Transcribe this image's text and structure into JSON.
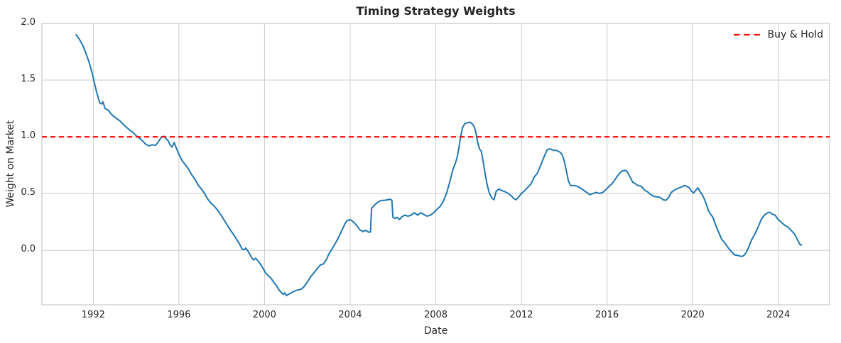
{
  "chart_data": {
    "type": "line",
    "title": "Timing Strategy Weights",
    "xlabel": "Date",
    "ylabel": "Weight on Market",
    "xlim": [
      1989.6,
      2026.4
    ],
    "ylim": [
      -0.48,
      2.0
    ],
    "xticks": [
      1992,
      1996,
      2000,
      2004,
      2008,
      2012,
      2016,
      2020,
      2024
    ],
    "yticks": [
      0.0,
      0.5,
      1.0,
      1.5,
      2.0
    ],
    "grid": true,
    "legend_position": "upper right",
    "colors": {
      "grid": "#cccccc",
      "spine": "#cccccc",
      "text": "#262626",
      "background": "#ffffff"
    },
    "series": [
      {
        "name": "Timing Strategy",
        "type": "line",
        "color": "#1f77b4",
        "in_legend": false,
        "points": [
          [
            1991.2,
            1.9
          ],
          [
            1991.35,
            1.86
          ],
          [
            1991.5,
            1.81
          ],
          [
            1991.65,
            1.74
          ],
          [
            1991.8,
            1.66
          ],
          [
            1991.95,
            1.56
          ],
          [
            1992.05,
            1.48
          ],
          [
            1992.15,
            1.4
          ],
          [
            1992.3,
            1.3
          ],
          [
            1992.4,
            1.29
          ],
          [
            1992.45,
            1.31
          ],
          [
            1992.55,
            1.25
          ],
          [
            1992.7,
            1.235
          ],
          [
            1992.8,
            1.21
          ],
          [
            1992.95,
            1.18
          ],
          [
            1993.1,
            1.16
          ],
          [
            1993.25,
            1.14
          ],
          [
            1993.4,
            1.11
          ],
          [
            1993.55,
            1.085
          ],
          [
            1993.7,
            1.06
          ],
          [
            1993.85,
            1.04
          ],
          [
            1994.0,
            1.01
          ],
          [
            1994.15,
            0.99
          ],
          [
            1994.3,
            0.965
          ],
          [
            1994.45,
            0.935
          ],
          [
            1994.6,
            0.92
          ],
          [
            1994.75,
            0.93
          ],
          [
            1994.9,
            0.925
          ],
          [
            1995.0,
            0.945
          ],
          [
            1995.1,
            0.975
          ],
          [
            1995.2,
            1.0
          ],
          [
            1995.3,
            1.005
          ],
          [
            1995.4,
            0.985
          ],
          [
            1995.5,
            0.965
          ],
          [
            1995.6,
            0.925
          ],
          [
            1995.68,
            0.91
          ],
          [
            1995.78,
            0.95
          ],
          [
            1995.88,
            0.9
          ],
          [
            1996.0,
            0.845
          ],
          [
            1996.15,
            0.79
          ],
          [
            1996.3,
            0.755
          ],
          [
            1996.45,
            0.715
          ],
          [
            1996.6,
            0.665
          ],
          [
            1996.75,
            0.625
          ],
          [
            1996.9,
            0.575
          ],
          [
            1997.05,
            0.54
          ],
          [
            1997.2,
            0.5
          ],
          [
            1997.35,
            0.45
          ],
          [
            1997.5,
            0.415
          ],
          [
            1997.65,
            0.39
          ],
          [
            1997.8,
            0.355
          ],
          [
            1997.95,
            0.315
          ],
          [
            1998.1,
            0.27
          ],
          [
            1998.25,
            0.225
          ],
          [
            1998.4,
            0.18
          ],
          [
            1998.55,
            0.14
          ],
          [
            1998.7,
            0.095
          ],
          [
            1998.85,
            0.05
          ],
          [
            1998.95,
            0.01
          ],
          [
            1999.05,
            0.005
          ],
          [
            1999.12,
            0.02
          ],
          [
            1999.2,
            0.0
          ],
          [
            1999.3,
            -0.03
          ],
          [
            1999.42,
            -0.07
          ],
          [
            1999.5,
            -0.085
          ],
          [
            1999.58,
            -0.07
          ],
          [
            1999.68,
            -0.09
          ],
          [
            1999.8,
            -0.12
          ],
          [
            1999.92,
            -0.155
          ],
          [
            2000.05,
            -0.2
          ],
          [
            2000.18,
            -0.225
          ],
          [
            2000.3,
            -0.245
          ],
          [
            2000.42,
            -0.28
          ],
          [
            2000.55,
            -0.31
          ],
          [
            2000.68,
            -0.35
          ],
          [
            2000.8,
            -0.375
          ],
          [
            2000.88,
            -0.39
          ],
          [
            2000.95,
            -0.375
          ],
          [
            2001.02,
            -0.4
          ],
          [
            2001.1,
            -0.39
          ],
          [
            2001.25,
            -0.375
          ],
          [
            2001.4,
            -0.36
          ],
          [
            2001.55,
            -0.35
          ],
          [
            2001.7,
            -0.345
          ],
          [
            2001.85,
            -0.32
          ],
          [
            2002.0,
            -0.28
          ],
          [
            2002.15,
            -0.235
          ],
          [
            2002.3,
            -0.2
          ],
          [
            2002.45,
            -0.165
          ],
          [
            2002.6,
            -0.13
          ],
          [
            2002.75,
            -0.12
          ],
          [
            2002.9,
            -0.08
          ],
          [
            2003.0,
            -0.035
          ],
          [
            2003.15,
            0.01
          ],
          [
            2003.3,
            0.06
          ],
          [
            2003.45,
            0.11
          ],
          [
            2003.6,
            0.17
          ],
          [
            2003.75,
            0.23
          ],
          [
            2003.85,
            0.26
          ],
          [
            2004.0,
            0.27
          ],
          [
            2004.15,
            0.25
          ],
          [
            2004.3,
            0.22
          ],
          [
            2004.45,
            0.18
          ],
          [
            2004.6,
            0.165
          ],
          [
            2004.72,
            0.175
          ],
          [
            2004.85,
            0.16
          ],
          [
            2004.95,
            0.16
          ],
          [
            2005.0,
            0.37
          ],
          [
            2005.15,
            0.4
          ],
          [
            2005.3,
            0.425
          ],
          [
            2005.45,
            0.44
          ],
          [
            2005.6,
            0.44
          ],
          [
            2005.75,
            0.445
          ],
          [
            2005.88,
            0.45
          ],
          [
            2005.95,
            0.44
          ],
          [
            2006.0,
            0.29
          ],
          [
            2006.1,
            0.28
          ],
          [
            2006.2,
            0.29
          ],
          [
            2006.3,
            0.27
          ],
          [
            2006.42,
            0.295
          ],
          [
            2006.55,
            0.31
          ],
          [
            2006.7,
            0.3
          ],
          [
            2006.85,
            0.31
          ],
          [
            2007.0,
            0.33
          ],
          [
            2007.15,
            0.31
          ],
          [
            2007.3,
            0.33
          ],
          [
            2007.45,
            0.315
          ],
          [
            2007.6,
            0.3
          ],
          [
            2007.75,
            0.31
          ],
          [
            2007.9,
            0.33
          ],
          [
            2008.05,
            0.36
          ],
          [
            2008.2,
            0.385
          ],
          [
            2008.35,
            0.43
          ],
          [
            2008.5,
            0.5
          ],
          [
            2008.65,
            0.6
          ],
          [
            2008.8,
            0.71
          ],
          [
            2008.92,
            0.77
          ],
          [
            2009.0,
            0.82
          ],
          [
            2009.08,
            0.9
          ],
          [
            2009.16,
            1.0
          ],
          [
            2009.25,
            1.08
          ],
          [
            2009.35,
            1.115
          ],
          [
            2009.5,
            1.125
          ],
          [
            2009.6,
            1.13
          ],
          [
            2009.7,
            1.115
          ],
          [
            2009.8,
            1.09
          ],
          [
            2009.88,
            1.03
          ],
          [
            2009.95,
            0.955
          ],
          [
            2010.05,
            0.89
          ],
          [
            2010.12,
            0.875
          ],
          [
            2010.2,
            0.8
          ],
          [
            2010.3,
            0.68
          ],
          [
            2010.4,
            0.58
          ],
          [
            2010.5,
            0.505
          ],
          [
            2010.62,
            0.46
          ],
          [
            2010.72,
            0.445
          ],
          [
            2010.82,
            0.52
          ],
          [
            2010.95,
            0.54
          ],
          [
            2011.1,
            0.525
          ],
          [
            2011.25,
            0.515
          ],
          [
            2011.4,
            0.5
          ],
          [
            2011.55,
            0.475
          ],
          [
            2011.65,
            0.455
          ],
          [
            2011.75,
            0.445
          ],
          [
            2011.85,
            0.465
          ],
          [
            2012.0,
            0.5
          ],
          [
            2012.15,
            0.525
          ],
          [
            2012.3,
            0.555
          ],
          [
            2012.45,
            0.585
          ],
          [
            2012.6,
            0.645
          ],
          [
            2012.75,
            0.68
          ],
          [
            2012.9,
            0.75
          ],
          [
            2013.05,
            0.82
          ],
          [
            2013.2,
            0.885
          ],
          [
            2013.35,
            0.895
          ],
          [
            2013.5,
            0.88
          ],
          [
            2013.65,
            0.88
          ],
          [
            2013.8,
            0.865
          ],
          [
            2013.9,
            0.845
          ],
          [
            2014.0,
            0.79
          ],
          [
            2014.1,
            0.7
          ],
          [
            2014.2,
            0.61
          ],
          [
            2014.3,
            0.57
          ],
          [
            2014.45,
            0.57
          ],
          [
            2014.6,
            0.565
          ],
          [
            2014.75,
            0.55
          ],
          [
            2014.9,
            0.53
          ],
          [
            2015.05,
            0.51
          ],
          [
            2015.2,
            0.49
          ],
          [
            2015.35,
            0.5
          ],
          [
            2015.5,
            0.51
          ],
          [
            2015.65,
            0.5
          ],
          [
            2015.8,
            0.51
          ],
          [
            2015.95,
            0.535
          ],
          [
            2016.1,
            0.565
          ],
          [
            2016.25,
            0.59
          ],
          [
            2016.4,
            0.63
          ],
          [
            2016.55,
            0.67
          ],
          [
            2016.7,
            0.7
          ],
          [
            2016.85,
            0.705
          ],
          [
            2016.95,
            0.69
          ],
          [
            2017.05,
            0.655
          ],
          [
            2017.2,
            0.6
          ],
          [
            2017.3,
            0.59
          ],
          [
            2017.45,
            0.57
          ],
          [
            2017.6,
            0.565
          ],
          [
            2017.75,
            0.53
          ],
          [
            2017.9,
            0.515
          ],
          [
            2018.05,
            0.49
          ],
          [
            2018.2,
            0.475
          ],
          [
            2018.35,
            0.47
          ],
          [
            2018.5,
            0.465
          ],
          [
            2018.62,
            0.445
          ],
          [
            2018.75,
            0.44
          ],
          [
            2018.88,
            0.465
          ],
          [
            2019.0,
            0.51
          ],
          [
            2019.15,
            0.53
          ],
          [
            2019.3,
            0.545
          ],
          [
            2019.45,
            0.555
          ],
          [
            2019.6,
            0.57
          ],
          [
            2019.72,
            0.565
          ],
          [
            2019.85,
            0.55
          ],
          [
            2019.95,
            0.52
          ],
          [
            2020.05,
            0.505
          ],
          [
            2020.15,
            0.53
          ],
          [
            2020.25,
            0.55
          ],
          [
            2020.35,
            0.515
          ],
          [
            2020.45,
            0.49
          ],
          [
            2020.55,
            0.45
          ],
          [
            2020.65,
            0.4
          ],
          [
            2020.75,
            0.345
          ],
          [
            2020.85,
            0.315
          ],
          [
            2020.95,
            0.29
          ],
          [
            2021.05,
            0.235
          ],
          [
            2021.2,
            0.165
          ],
          [
            2021.35,
            0.1
          ],
          [
            2021.5,
            0.065
          ],
          [
            2021.65,
            0.025
          ],
          [
            2021.8,
            -0.01
          ],
          [
            2021.95,
            -0.04
          ],
          [
            2022.1,
            -0.045
          ],
          [
            2022.2,
            -0.05
          ],
          [
            2022.3,
            -0.055
          ],
          [
            2022.4,
            -0.045
          ],
          [
            2022.5,
            -0.02
          ],
          [
            2022.6,
            0.02
          ],
          [
            2022.75,
            0.09
          ],
          [
            2022.9,
            0.14
          ],
          [
            2023.05,
            0.2
          ],
          [
            2023.2,
            0.27
          ],
          [
            2023.35,
            0.31
          ],
          [
            2023.5,
            0.33
          ],
          [
            2023.6,
            0.335
          ],
          [
            2023.7,
            0.32
          ],
          [
            2023.85,
            0.31
          ],
          [
            2024.0,
            0.27
          ],
          [
            2024.15,
            0.245
          ],
          [
            2024.3,
            0.22
          ],
          [
            2024.45,
            0.205
          ],
          [
            2024.6,
            0.175
          ],
          [
            2024.75,
            0.145
          ],
          [
            2024.88,
            0.1
          ],
          [
            2025.0,
            0.055
          ],
          [
            2025.08,
            0.045
          ]
        ]
      },
      {
        "name": "Buy & Hold",
        "type": "hline",
        "style": "dashed",
        "color": "#ff0000",
        "value": 1.0,
        "in_legend": true
      }
    ]
  }
}
